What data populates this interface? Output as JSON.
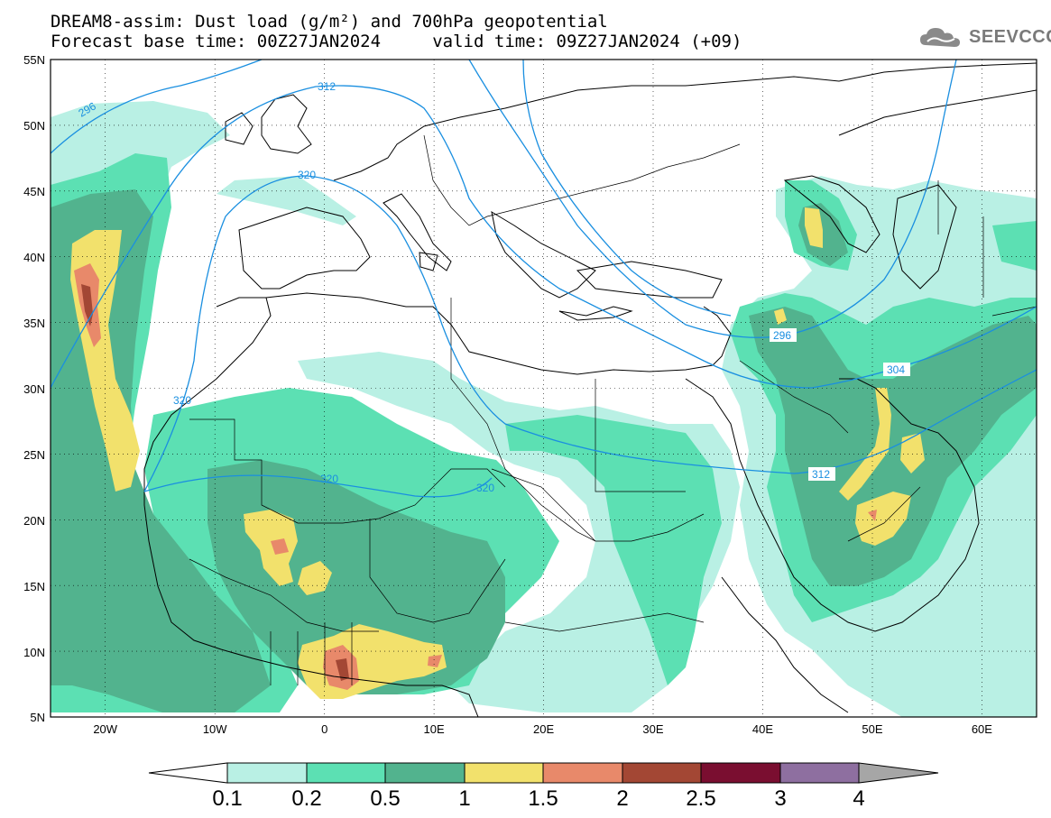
{
  "title": {
    "line1": "DREAM8-assim: Dust load (g/m²) and 700hPa geopotential",
    "line2": "Forecast base time: 00Z27JAN2024     valid time: 09Z27JAN2024 (+09)"
  },
  "logo": {
    "text": "SEEVCCC",
    "icon": "cloud-icon"
  },
  "map": {
    "lon_range": [
      -25,
      65
    ],
    "lat_range": [
      5,
      55
    ],
    "lat_labels": [
      "55N",
      "50N",
      "45N",
      "40N",
      "35N",
      "30N",
      "25N",
      "20N",
      "15N",
      "10N",
      "5N"
    ],
    "lon_labels": [
      "20W",
      "10W",
      "0",
      "10E",
      "20E",
      "30E",
      "40E",
      "50E",
      "60E"
    ]
  },
  "contour_labels": [
    "296",
    "312",
    "320",
    "320",
    "320",
    "320",
    "296",
    "304",
    "312"
  ],
  "colorbar": {
    "ticks": [
      "0.1",
      "0.2",
      "0.5",
      "1",
      "1.5",
      "2",
      "2.5",
      "3",
      "4"
    ],
    "colors": [
      "#ffffff",
      "#b9f0e4",
      "#5ce0b3",
      "#52b38e",
      "#f2e16c",
      "#e8896a",
      "#a34734",
      "#7a0e30",
      "#8e6fa0",
      "#a6a6a6"
    ]
  }
}
